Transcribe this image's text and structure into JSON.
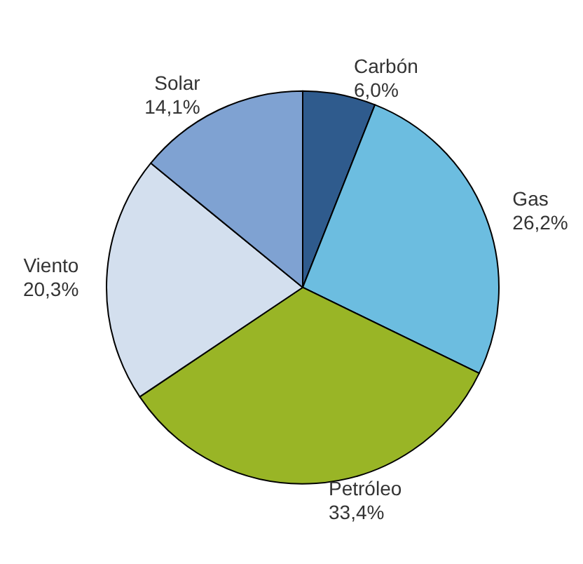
{
  "chart_data": {
    "type": "pie",
    "categories": [
      "Carbón",
      "Gas",
      "Petróleo",
      "Viento",
      "Solar"
    ],
    "values": [
      6.0,
      26.2,
      33.4,
      20.3,
      14.1
    ],
    "value_labels": [
      "6,0%",
      "26,2%",
      "33,4%",
      "20,3%",
      "14,1%"
    ],
    "colors": [
      "#2f5b8d",
      "#6cbde0",
      "#99b526",
      "#d3dfee",
      "#7fa2d2"
    ],
    "legend": false
  }
}
